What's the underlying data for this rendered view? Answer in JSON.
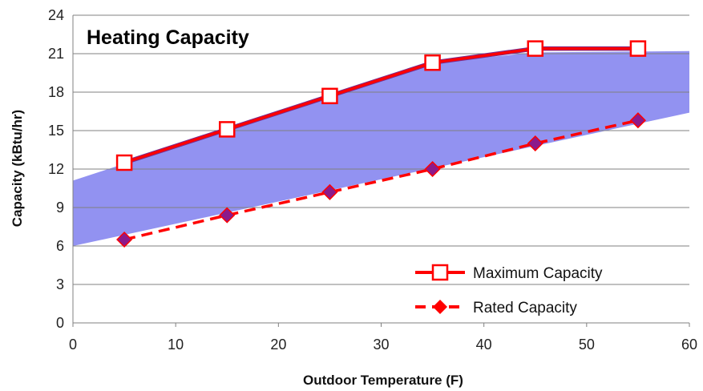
{
  "chart_data": {
    "type": "line",
    "title": "Heating Capacity",
    "xlabel": "Outdoor Temperature (F)",
    "ylabel": "Capacity (kBtu/hr)",
    "xlim": [
      0,
      60
    ],
    "ylim": [
      0,
      24
    ],
    "x_ticks": [
      0,
      10,
      20,
      30,
      40,
      50,
      60
    ],
    "y_ticks": [
      0,
      3,
      6,
      9,
      12,
      15,
      18,
      21,
      24
    ],
    "grid": "horizontal",
    "legend_position": "bottom-right",
    "x": [
      5,
      15,
      25,
      35,
      45,
      55
    ],
    "series": [
      {
        "name": "Maximum Capacity",
        "values": [
          12.5,
          15.1,
          17.7,
          20.3,
          21.4,
          21.4
        ],
        "color": "#ff0000",
        "marker": "open-square",
        "line": "solid"
      },
      {
        "name": "Rated Capacity",
        "values": [
          6.5,
          8.4,
          10.2,
          12.0,
          14.0,
          15.8
        ],
        "color": "#ff0000",
        "marker": "diamond",
        "line": "dashed"
      }
    ],
    "band": {
      "color": "#8c8cf0",
      "upper": [
        [
          0,
          11.1
        ],
        [
          35,
          20.3
        ],
        [
          45,
          21.1
        ],
        [
          60,
          21.2
        ]
      ],
      "lower": [
        [
          0,
          6.0
        ],
        [
          60,
          16.4
        ]
      ]
    },
    "colors": {
      "max_edge": "#7a2a8a",
      "rated_fill": "#8b1a8b",
      "grid": "#808080"
    }
  }
}
